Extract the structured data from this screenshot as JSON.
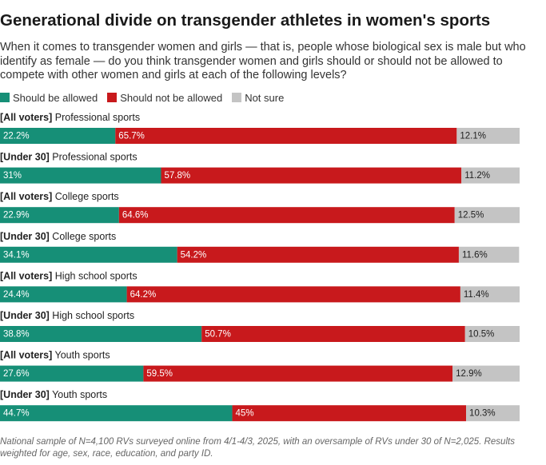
{
  "title": "Generational divide on transgender athletes in women's sports",
  "subtitle": "When it comes to transgender women and girls — that is, people whose biological sex is male but who identify as female — do you think transgender women and girls should or should not be allowed to compete with other women and girls at each of the following levels?",
  "legend": [
    {
      "label": "Should be allowed",
      "color": "#168f77"
    },
    {
      "label": "Should not be allowed",
      "color": "#c8191c"
    },
    {
      "label": "Not sure",
      "color": "#c4c4c4"
    }
  ],
  "chart_data": {
    "type": "bar",
    "orientation": "horizontal",
    "stacked": true,
    "xlim": [
      0,
      100
    ],
    "categories": [
      {
        "group": "[All voters]",
        "level": "Professional sports"
      },
      {
        "group": "[Under 30]",
        "level": "Professional sports"
      },
      {
        "group": "[All voters]",
        "level": "College sports"
      },
      {
        "group": "[Under 30]",
        "level": "College sports"
      },
      {
        "group": "[All voters]",
        "level": "High school sports"
      },
      {
        "group": "[Under 30]",
        "level": "High school sports"
      },
      {
        "group": "[All voters]",
        "level": "Youth sports"
      },
      {
        "group": "[Under 30]",
        "level": "Youth sports"
      }
    ],
    "series": [
      {
        "name": "Should be allowed",
        "color": "#168f77",
        "values": [
          22.2,
          31,
          22.9,
          34.1,
          24.4,
          38.8,
          27.6,
          44.7
        ],
        "labels": [
          "22.2%",
          "31%",
          "22.9%",
          "34.1%",
          "24.4%",
          "38.8%",
          "27.6%",
          "44.7%"
        ]
      },
      {
        "name": "Should not be allowed",
        "color": "#c8191c",
        "values": [
          65.7,
          57.8,
          64.6,
          54.2,
          64.2,
          50.7,
          59.5,
          45
        ],
        "labels": [
          "65.7%",
          "57.8%",
          "64.6%",
          "54.2%",
          "64.2%",
          "50.7%",
          "59.5%",
          "45%"
        ]
      },
      {
        "name": "Not sure",
        "color": "#c4c4c4",
        "values": [
          12.1,
          11.2,
          12.5,
          11.6,
          11.4,
          10.5,
          12.9,
          10.3
        ],
        "labels": [
          "12.1%",
          "11.2%",
          "12.5%",
          "11.6%",
          "11.4%",
          "10.5%",
          "12.9%",
          "10.3%"
        ]
      }
    ]
  },
  "note": "National sample of N=4,100 RVs surveyed online from 4/1-4/3, 2025, with an oversample of RVs under 30 of N=2,025. Results weighted for age, sex, race, education, and party ID."
}
